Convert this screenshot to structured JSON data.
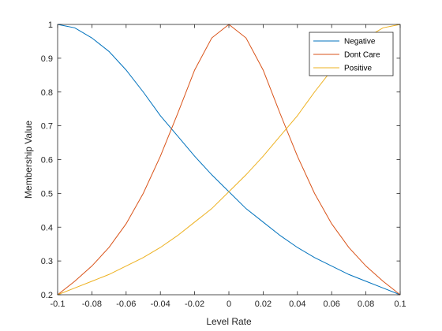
{
  "chart_data": {
    "type": "line",
    "title": "",
    "xlabel": "Level Rate",
    "ylabel": "Membership Value",
    "xlim": [
      -0.1,
      0.1
    ],
    "ylim": [
      0.2,
      1
    ],
    "xticks": [
      -0.1,
      -0.08,
      -0.06,
      -0.04,
      -0.02,
      0,
      0.02,
      0.04,
      0.06,
      0.08,
      0.1
    ],
    "xtick_labels": [
      "-0.1",
      "-0.08",
      "-0.06",
      "-0.04",
      "-0.02",
      "0",
      "0.02",
      "0.04",
      "0.06",
      "0.08",
      "0.1"
    ],
    "yticks": [
      0.2,
      0.3,
      0.4,
      0.5,
      0.6,
      0.7,
      0.8,
      0.9,
      1
    ],
    "ytick_labels": [
      "0.2",
      "0.3",
      "0.4",
      "0.5",
      "0.6",
      "0.7",
      "0.8",
      "0.9",
      "1"
    ],
    "grid": false,
    "legend_position": "top-right",
    "x": [
      -0.1,
      -0.09,
      -0.08,
      -0.07,
      -0.06,
      -0.05,
      -0.04,
      -0.03,
      -0.02,
      -0.01,
      0,
      0.01,
      0.02,
      0.03,
      0.04,
      0.05,
      0.06,
      0.07,
      0.08,
      0.09,
      0.1
    ],
    "series": [
      {
        "name": "Negative",
        "color": "#0072BD",
        "values": [
          1.0,
          0.99,
          0.96,
          0.92,
          0.865,
          0.8,
          0.73,
          0.67,
          0.61,
          0.555,
          0.505,
          0.455,
          0.415,
          0.375,
          0.34,
          0.31,
          0.285,
          0.26,
          0.24,
          0.22,
          0.2
        ]
      },
      {
        "name": "Dont Care",
        "color": "#D95319",
        "values": [
          0.2,
          0.24,
          0.285,
          0.34,
          0.41,
          0.5,
          0.61,
          0.735,
          0.865,
          0.96,
          1.0,
          0.96,
          0.865,
          0.735,
          0.61,
          0.5,
          0.41,
          0.34,
          0.285,
          0.24,
          0.2
        ]
      },
      {
        "name": "Positive",
        "color": "#EDB120",
        "values": [
          0.2,
          0.22,
          0.24,
          0.26,
          0.285,
          0.31,
          0.34,
          0.375,
          0.415,
          0.455,
          0.505,
          0.555,
          0.61,
          0.67,
          0.73,
          0.8,
          0.865,
          0.92,
          0.96,
          0.99,
          1.0
        ]
      }
    ]
  }
}
